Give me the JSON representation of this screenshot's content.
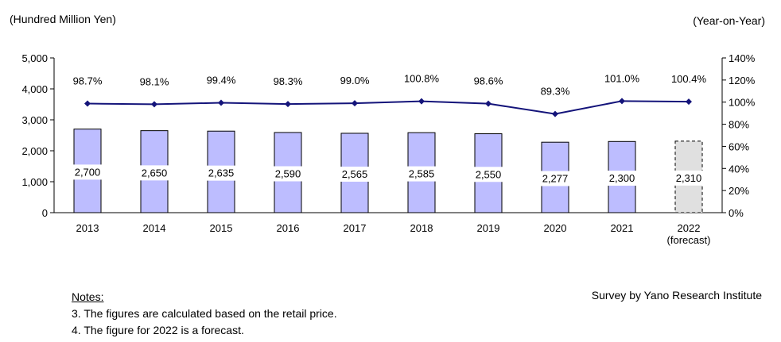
{
  "chart_data": {
    "type": "bar",
    "categories": [
      "2013",
      "2014",
      "2015",
      "2016",
      "2017",
      "2018",
      "2019",
      "2020",
      "2021",
      "2022"
    ],
    "category_sublabels": [
      "",
      "",
      "",
      "",
      "",
      "",
      "",
      "",
      "",
      "(forecast)"
    ],
    "series": [
      {
        "values": [
          2700,
          2650,
          2635,
          2590,
          2565,
          2585,
          2550,
          2277,
          2300,
          2310
        ],
        "value_labels": [
          "2,700",
          "2,650",
          "2,635",
          "2,590",
          "2,565",
          "2,585",
          "2,550",
          "2,277",
          "2,300",
          "2,310"
        ],
        "forecast": [
          false,
          false,
          false,
          false,
          false,
          false,
          false,
          false,
          false,
          true
        ],
        "axis": "left"
      },
      {
        "type": "line",
        "values": [
          98.7,
          98.1,
          99.4,
          98.3,
          99.0,
          100.8,
          98.6,
          89.3,
          101.0,
          100.4
        ],
        "value_labels": [
          "98.7%",
          "98.1%",
          "99.4%",
          "98.3%",
          "99.0%",
          "100.8%",
          "98.6%",
          "89.3%",
          "101.0%",
          "100.4%"
        ],
        "axis": "right"
      }
    ],
    "y_left": {
      "label": "(Hundred  Million Yen)",
      "range": [
        0,
        5000
      ],
      "ticks": [
        "0",
        "1,000",
        "2,000",
        "3,000",
        "4,000",
        "5,000"
      ]
    },
    "y_right": {
      "label": "(Year-on-Year)",
      "range": [
        0,
        140
      ],
      "ticks": [
        "0%",
        "20%",
        "40%",
        "60%",
        "80%",
        "100%",
        "120%",
        "140%"
      ]
    },
    "grid": false,
    "colors": {
      "bar": "#bdbdff",
      "forecast_bar": "#e0e0e0",
      "line": "#14147a"
    }
  },
  "notes": {
    "title": "Notes:",
    "lines": [
      "3. The figures are calculated based on the retail price.",
      "4. The figure for 2022 is a forecast."
    ]
  },
  "source": "Survey by Yano Research Institute"
}
